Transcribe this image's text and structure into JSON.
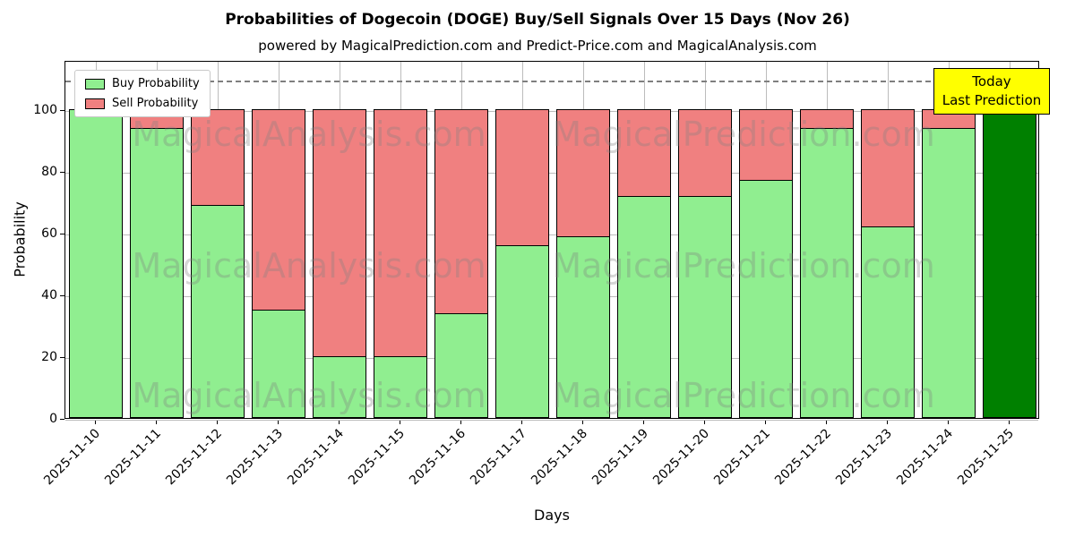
{
  "title": "Probabilities of Dogecoin (DOGE) Buy/Sell Signals Over 15 Days (Nov 26)",
  "subtitle": "powered by MagicalPrediction.com and Predict-Price.com and MagicalAnalysis.com",
  "chart_data": {
    "type": "bar",
    "stacked": true,
    "title": "Probabilities of Dogecoin (DOGE) Buy/Sell Signals Over 15 Days (Nov 26)",
    "xlabel": "Days",
    "ylabel": "Probability",
    "categories": [
      "2025-11-10",
      "2025-11-11",
      "2025-11-12",
      "2025-11-13",
      "2025-11-14",
      "2025-11-15",
      "2025-11-16",
      "2025-11-17",
      "2025-11-18",
      "2025-11-19",
      "2025-11-20",
      "2025-11-21",
      "2025-11-22",
      "2025-11-23",
      "2025-11-24",
      "2025-11-25"
    ],
    "series": [
      {
        "name": "Buy Probability",
        "color": "#90ee90",
        "values": [
          100,
          94,
          69,
          35,
          20,
          20,
          34,
          56,
          59,
          72,
          72,
          77,
          94,
          62,
          94,
          100
        ]
      },
      {
        "name": "Sell Probability",
        "color": "#f08080",
        "values": [
          0,
          6,
          31,
          65,
          80,
          80,
          66,
          44,
          41,
          28,
          28,
          23,
          6,
          38,
          6,
          0
        ]
      }
    ],
    "special_bars": [
      {
        "index": 15,
        "color": "#008000"
      }
    ],
    "ylim": [
      0,
      116
    ],
    "yticks": [
      0,
      20,
      40,
      60,
      80,
      100
    ],
    "dashed_line_y": 110,
    "grid": true,
    "legend_position": "upper left",
    "annotation": {
      "line1": "Today",
      "line2": "Last Prediction",
      "bg": "#ffff00"
    },
    "watermarks": [
      "MagicalAnalysis.com",
      "MagicalPrediction.com"
    ]
  }
}
